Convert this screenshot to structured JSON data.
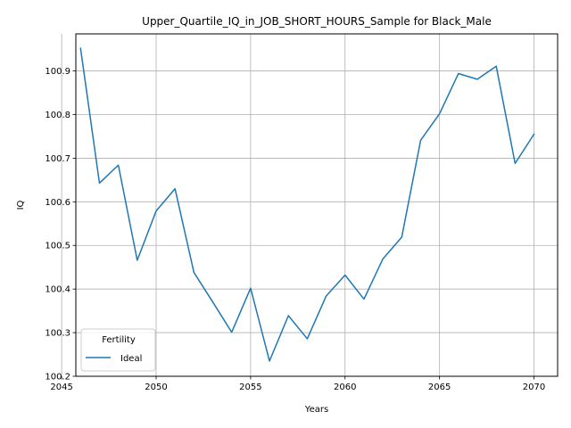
{
  "chart_data": {
    "type": "line",
    "title": "Upper_Quartile_IQ_in_JOB_SHORT_HOURS_Sample for Black_Male",
    "xlabel": "Years",
    "ylabel": "IQ",
    "xlim": [
      2045.75,
      2071.25
    ],
    "ylim": [
      100.2,
      100.985
    ],
    "xticks": [
      2045,
      2050,
      2055,
      2060,
      2065,
      2070
    ],
    "yticks": [
      100.2,
      100.3,
      100.4,
      100.5,
      100.6,
      100.7,
      100.8,
      100.9
    ],
    "grid": true,
    "legend": {
      "title": "Fertility",
      "position": "lower-left"
    },
    "series": [
      {
        "name": "Ideal",
        "color": "#1f77b4",
        "x": [
          2046,
          2047,
          2048,
          2049,
          2050,
          2051,
          2052,
          2053,
          2054,
          2055,
          2056,
          2057,
          2058,
          2059,
          2060,
          2061,
          2062,
          2063,
          2064,
          2065,
          2066,
          2067,
          2068,
          2069,
          2070
        ],
        "y": [
          100.952,
          100.643,
          100.684,
          100.466,
          100.579,
          100.63,
          100.438,
          100.37,
          100.301,
          100.402,
          100.235,
          100.339,
          100.286,
          100.384,
          100.432,
          100.377,
          100.469,
          100.519,
          100.741,
          100.802,
          100.894,
          100.881,
          100.911,
          100.688,
          100.755
        ]
      }
    ]
  }
}
